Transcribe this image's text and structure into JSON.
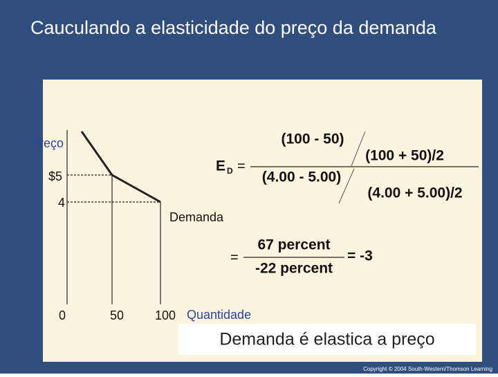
{
  "title": "Cauculando a elasticidade do preço da demanda",
  "graph": {
    "y_label": "Preço",
    "y_ticks": [
      "$5",
      "4"
    ],
    "x_ticks": [
      "0",
      "50",
      "100"
    ],
    "x_label": "Quantidade",
    "curve_label": "Demanda"
  },
  "formula": {
    "symbol": "E",
    "subscript": "D",
    "equals": "=",
    "numerator": {
      "top": "(100 - 50)",
      "bottom": "(100 + 50)/2"
    },
    "denominator": {
      "top": "(4.00 - 5.00)",
      "bottom": "(4.00 + 5.00)/2"
    },
    "result_numerator": "67 percent",
    "result_denominator": "-22 percent",
    "result": "= -3"
  },
  "conclusion": "Demanda é elastica a preço",
  "copyright": "Copyright © 2004 South-Western/Thomson Learning"
}
